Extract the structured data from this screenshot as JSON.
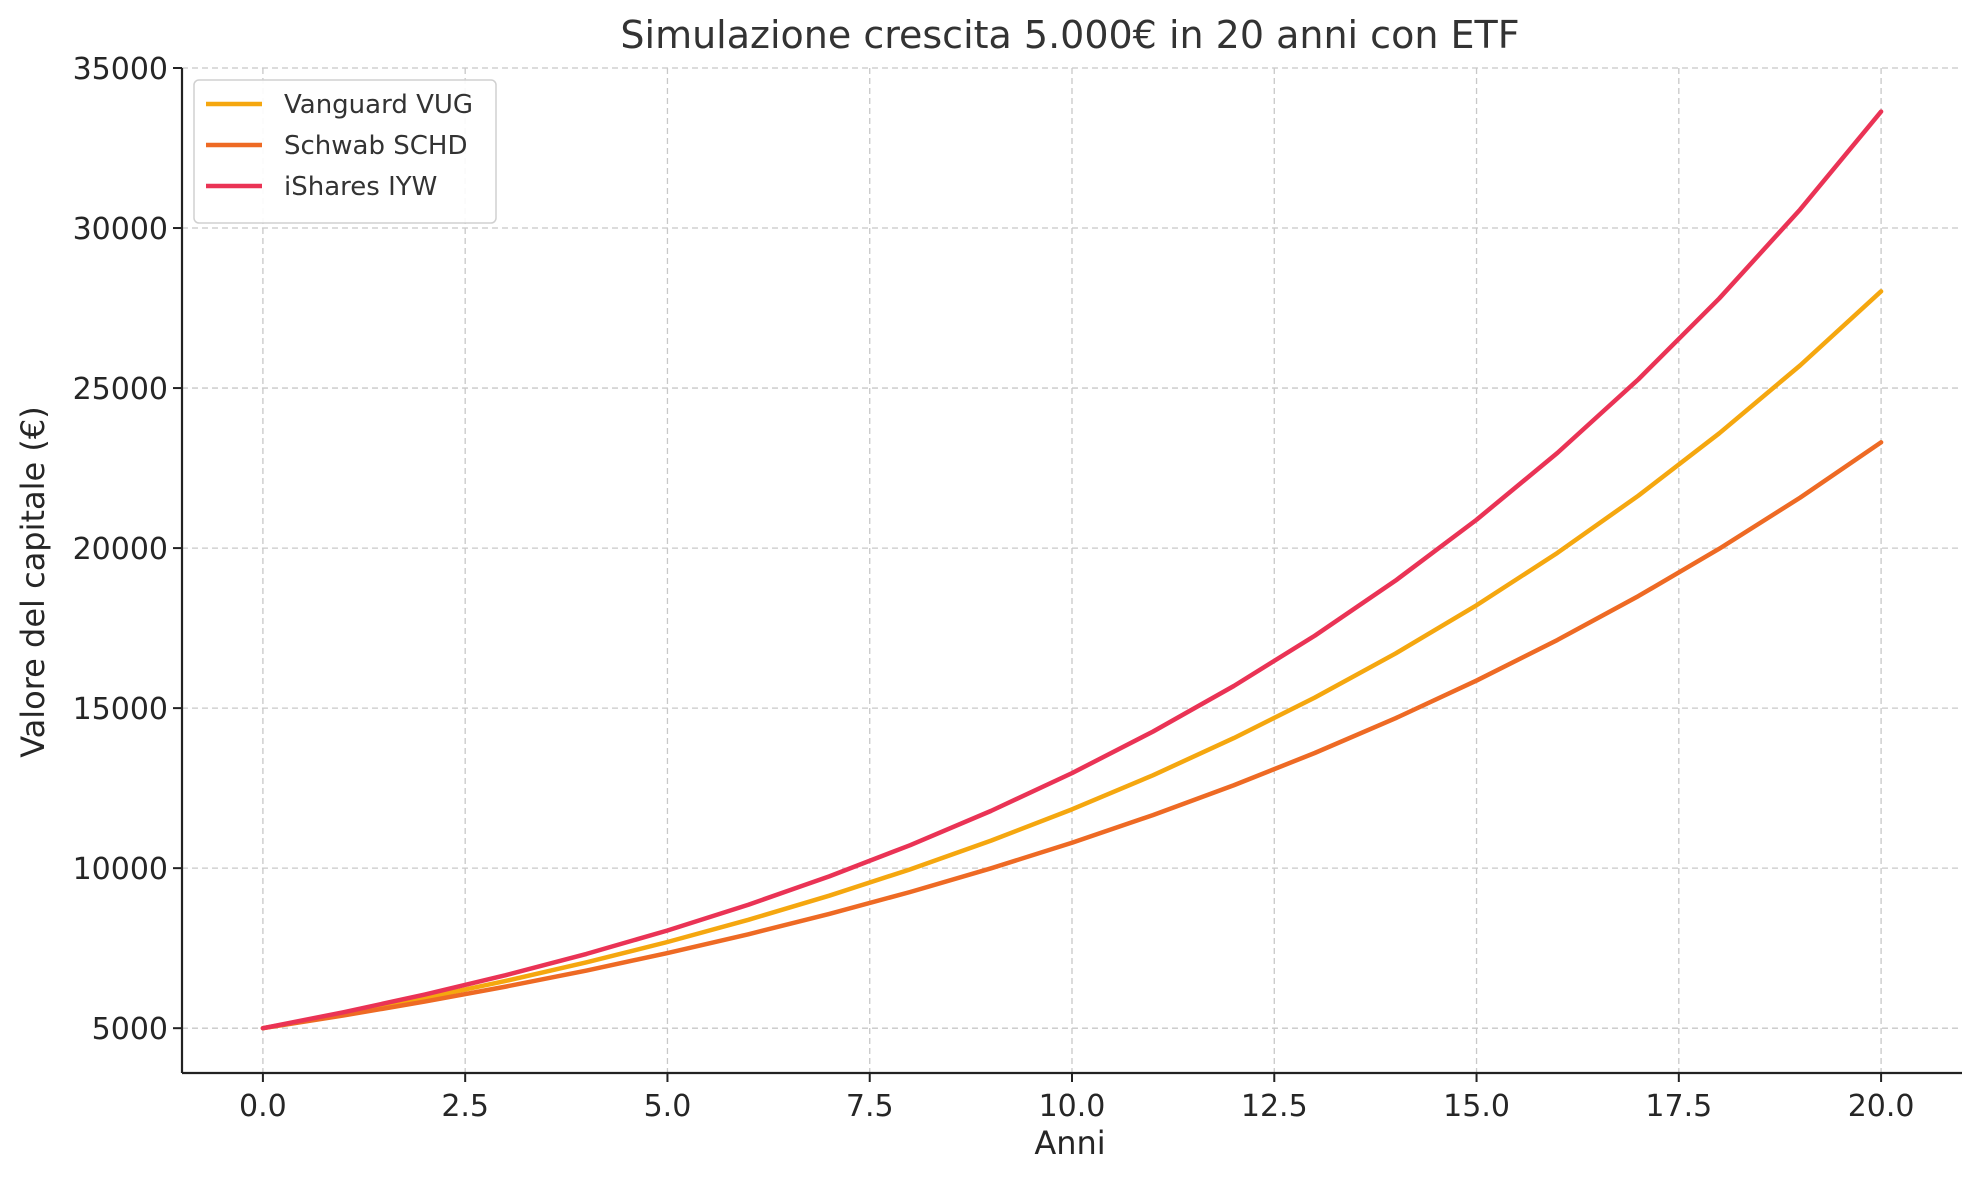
{
  "chart_data": {
    "type": "line",
    "title": "Simulazione crescita 5.000€ in 20 anni con ETF",
    "xlabel": "Anni",
    "ylabel": "Valore del capitale (€)",
    "xlim": [
      -1,
      21
    ],
    "ylim": [
      3600,
      35000
    ],
    "xticks": [
      0.0,
      2.5,
      5.0,
      7.5,
      10.0,
      12.5,
      15.0,
      17.5,
      20.0
    ],
    "xtick_labels": [
      "0.0",
      "2.5",
      "5.0",
      "7.5",
      "10.0",
      "12.5",
      "15.0",
      "17.5",
      "20.0"
    ],
    "yticks": [
      5000,
      10000,
      15000,
      20000,
      25000,
      30000,
      35000
    ],
    "ytick_labels": [
      "5000",
      "10000",
      "15000",
      "20000",
      "25000",
      "30000",
      "35000"
    ],
    "grid": true,
    "legend_position": "top-left",
    "x": [
      0,
      1,
      2,
      3,
      4,
      5,
      6,
      7,
      8,
      9,
      10,
      11,
      12,
      13,
      14,
      15,
      16,
      17,
      18,
      19,
      20
    ],
    "series": [
      {
        "name": "Vanguard VUG",
        "color": "#f5a70f",
        "values": [
          5000,
          5450,
          5941,
          6475,
          7058,
          7693,
          8386,
          9140,
          9963,
          10860,
          11837,
          12902,
          14064,
          15329,
          16709,
          18213,
          19852,
          21638,
          23586,
          25709,
          28022
        ]
      },
      {
        "name": "Schwab SCHD",
        "color": "#ee6a24",
        "values": [
          5000,
          5400,
          5832,
          6299,
          6802,
          7347,
          7934,
          8569,
          9255,
          9995,
          10795,
          11658,
          12591,
          13598,
          14686,
          15861,
          17130,
          18500,
          19980,
          21578,
          23305
        ]
      },
      {
        "name": "iShares IYW",
        "color": "#ea3355",
        "values": [
          5000,
          5500,
          6050,
          6655,
          7321,
          8053,
          8858,
          9744,
          10718,
          11790,
          12969,
          14266,
          15692,
          17261,
          18987,
          20886,
          22975,
          25272,
          27800,
          30580,
          33638
        ]
      }
    ]
  }
}
